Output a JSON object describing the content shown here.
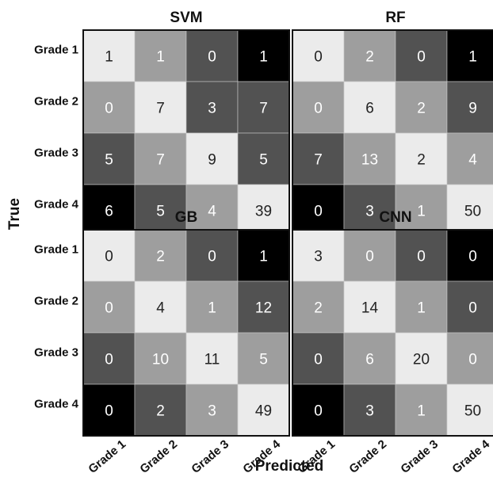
{
  "chart_data": {
    "type": "heatmap",
    "xlabel": "Predicted",
    "ylabel": "True",
    "row_labels": [
      "Grade 1",
      "Grade 2",
      "Grade 3",
      "Grade 4"
    ],
    "col_labels": [
      "Grade 1",
      "Grade 2",
      "Grade 3",
      "Grade 4"
    ],
    "panels": [
      {
        "title": "SVM",
        "matrix": [
          [
            1,
            1,
            0,
            1
          ],
          [
            0,
            7,
            3,
            7
          ],
          [
            5,
            7,
            9,
            5
          ],
          [
            6,
            5,
            4,
            39
          ]
        ],
        "shade": [
          [
            0.92,
            0.62,
            0.32,
            0.0
          ],
          [
            0.62,
            0.92,
            0.32,
            0.32
          ],
          [
            0.32,
            0.62,
            0.92,
            0.32
          ],
          [
            0.0,
            0.32,
            0.62,
            0.92
          ]
        ]
      },
      {
        "title": "RF",
        "matrix": [
          [
            0,
            2,
            0,
            1
          ],
          [
            0,
            6,
            2,
            9
          ],
          [
            7,
            13,
            2,
            4
          ],
          [
            0,
            3,
            1,
            50
          ]
        ],
        "shade": [
          [
            0.92,
            0.62,
            0.32,
            0.0
          ],
          [
            0.62,
            0.92,
            0.62,
            0.32
          ],
          [
            0.32,
            0.62,
            0.92,
            0.62
          ],
          [
            0.0,
            0.32,
            0.62,
            0.92
          ]
        ]
      },
      {
        "title": "GB",
        "matrix": [
          [
            0,
            2,
            0,
            1
          ],
          [
            0,
            4,
            1,
            12
          ],
          [
            0,
            10,
            11,
            5
          ],
          [
            0,
            2,
            3,
            49
          ]
        ],
        "shade": [
          [
            0.92,
            0.62,
            0.32,
            0.0
          ],
          [
            0.62,
            0.92,
            0.62,
            0.32
          ],
          [
            0.32,
            0.62,
            0.92,
            0.62
          ],
          [
            0.0,
            0.32,
            0.62,
            0.92
          ]
        ]
      },
      {
        "title": "CNN",
        "matrix": [
          [
            3,
            0,
            0,
            0
          ],
          [
            2,
            14,
            1,
            0
          ],
          [
            0,
            6,
            20,
            0
          ],
          [
            0,
            3,
            1,
            50
          ]
        ],
        "shade": [
          [
            0.92,
            0.62,
            0.32,
            0.0
          ],
          [
            0.62,
            0.92,
            0.62,
            0.32
          ],
          [
            0.32,
            0.62,
            0.92,
            0.62
          ],
          [
            0.0,
            0.32,
            0.62,
            0.92
          ]
        ]
      }
    ],
    "colors": {
      "dark_text": "#222222",
      "light_text": "#ffffff",
      "frame": "#111111"
    }
  }
}
